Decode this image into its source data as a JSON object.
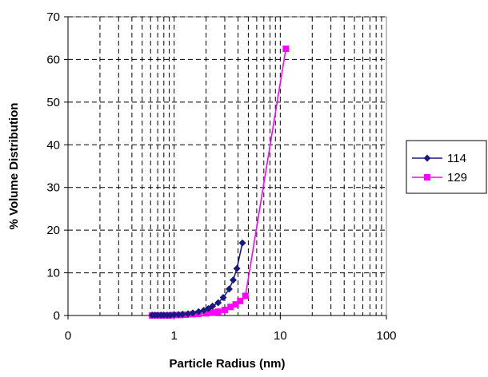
{
  "chart_data": {
    "type": "line",
    "x_scale": "log",
    "xlabel": "Particle Radius (nm)",
    "ylabel": "% Volume Distribution",
    "xlim": [
      0.1,
      100
    ],
    "ylim": [
      0,
      70
    ],
    "x_tick_labels": [
      "0",
      "1",
      "10",
      "100"
    ],
    "x_tick_values": [
      0.1,
      1,
      10,
      100
    ],
    "y_ticks": [
      0,
      10,
      20,
      30,
      40,
      50,
      60,
      70
    ],
    "grid": "dashed vertical minor and major lines, dashed horizontal lines",
    "legend_position": "right",
    "series": [
      {
        "name": "114",
        "color": "#1a1a7e",
        "marker": "diamond",
        "points": [
          [
            0.62,
            0.1
          ],
          [
            0.66,
            0.1
          ],
          [
            0.7,
            0.1
          ],
          [
            0.75,
            0.1
          ],
          [
            0.8,
            0.1
          ],
          [
            0.86,
            0.1
          ],
          [
            0.92,
            0.1
          ],
          [
            1.0,
            0.2
          ],
          [
            1.1,
            0.2
          ],
          [
            1.2,
            0.3
          ],
          [
            1.35,
            0.4
          ],
          [
            1.5,
            0.6
          ],
          [
            1.7,
            0.9
          ],
          [
            1.9,
            1.2
          ],
          [
            2.1,
            1.6
          ],
          [
            2.3,
            2.2
          ],
          [
            2.6,
            3.0
          ],
          [
            2.9,
            4.2
          ],
          [
            3.3,
            6.2
          ],
          [
            3.6,
            8.3
          ],
          [
            3.9,
            11.0
          ],
          [
            4.4,
            17.0
          ]
        ]
      },
      {
        "name": "129",
        "color": "#ff00ff",
        "marker": "square",
        "points": [
          [
            0.62,
            0.0
          ],
          [
            0.7,
            0.0
          ],
          [
            0.8,
            0.0
          ],
          [
            0.9,
            0.0
          ],
          [
            1.0,
            0.1
          ],
          [
            1.15,
            0.1
          ],
          [
            1.3,
            0.2
          ],
          [
            1.5,
            0.3
          ],
          [
            1.7,
            0.4
          ],
          [
            2.0,
            0.5
          ],
          [
            2.3,
            0.7
          ],
          [
            2.6,
            0.9
          ],
          [
            3.0,
            1.3
          ],
          [
            3.4,
            2.0
          ],
          [
            3.8,
            2.6
          ],
          [
            4.2,
            3.4
          ],
          [
            4.7,
            4.6
          ],
          [
            11.3,
            62.5
          ]
        ]
      }
    ]
  }
}
